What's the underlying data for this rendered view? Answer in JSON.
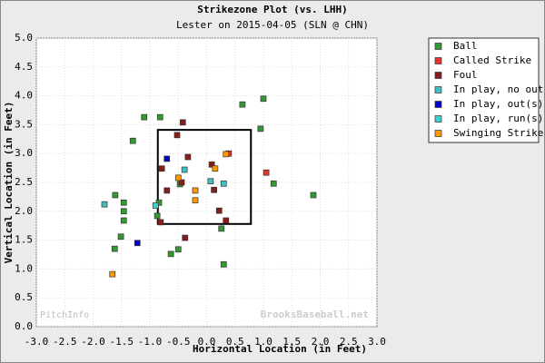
{
  "chart_data": {
    "type": "scatter",
    "title": "Strikezone Plot (vs. LHH)",
    "subtitle": "Lester on 2015-04-05 (SLN @ CHN)",
    "x_label": "Horizontal Location (in Feet)",
    "y_label": "Vertical Location (in Feet)",
    "watermarks": [
      "PitchInfo",
      "BrooksBaseball.net"
    ],
    "xlim": [
      -3,
      3
    ],
    "ylim": [
      0,
      5
    ],
    "xticks": [
      {
        "value": -3,
        "label": "-3.0"
      },
      {
        "value": -2.5,
        "label": "-2.5"
      },
      {
        "value": -2,
        "label": "-2.0"
      },
      {
        "value": -1.5,
        "label": "-1.5"
      },
      {
        "value": -1,
        "label": "-1.0"
      },
      {
        "value": -0.5,
        "label": "-0.5"
      },
      {
        "value": 0,
        "label": "0.0"
      },
      {
        "value": 0.5,
        "label": "0.5"
      },
      {
        "value": 1,
        "label": "1.0"
      },
      {
        "value": 1.5,
        "label": "1.5"
      },
      {
        "value": 2,
        "label": "2.0"
      },
      {
        "value": 2.5,
        "label": "2.5"
      },
      {
        "value": 3,
        "label": "3.0"
      }
    ],
    "yticks": [
      {
        "value": 0,
        "label": "0.0"
      },
      {
        "value": 0.5,
        "label": "0.5"
      },
      {
        "value": 1,
        "label": "1.0"
      },
      {
        "value": 1.5,
        "label": "1.5"
      },
      {
        "value": 2,
        "label": "2.0"
      },
      {
        "value": 2.5,
        "label": "2.5"
      },
      {
        "value": 3,
        "label": "3.0"
      },
      {
        "value": 3.5,
        "label": "3.5"
      },
      {
        "value": 4,
        "label": "4.0"
      },
      {
        "value": 4.5,
        "label": "4.5"
      },
      {
        "value": 5,
        "label": "5.0"
      }
    ],
    "grid": true,
    "legend": "right",
    "strike_zone": {
      "x": [
        -0.86,
        0.78
      ],
      "y": [
        1.78,
        3.41
      ]
    },
    "series": [
      {
        "name": "Ball",
        "color": "#339933",
        "x": [
          -1.1,
          -0.82,
          -1.3,
          0.63,
          1.0,
          0.95,
          -1.61,
          -1.46,
          -1.46,
          -1.46,
          1.18,
          1.88,
          -0.84,
          -0.87,
          -1.51,
          -1.62,
          -0.5,
          -0.63,
          0.26,
          0.3,
          -0.47
        ],
        "y": [
          3.63,
          3.63,
          3.22,
          3.85,
          3.95,
          3.43,
          2.28,
          2.15,
          2.0,
          1.84,
          2.48,
          2.28,
          2.15,
          1.92,
          1.56,
          1.35,
          1.34,
          1.26,
          1.7,
          1.08,
          2.47
        ]
      },
      {
        "name": "Called Strike",
        "color": "#e8322c",
        "x": [
          1.05,
          0.39
        ],
        "y": [
          2.67,
          3.0
        ]
      },
      {
        "name": "Foul",
        "color": "#8b1a1a",
        "x": [
          -0.42,
          -0.52,
          -0.33,
          -0.79,
          -0.7,
          0.09,
          0.13,
          0.22,
          0.34,
          -0.38,
          -0.81,
          -0.44
        ],
        "y": [
          3.54,
          3.32,
          2.94,
          2.74,
          2.36,
          2.81,
          2.37,
          2.01,
          1.84,
          1.54,
          1.81,
          2.5
        ]
      },
      {
        "name": "In play, no out",
        "color": "#40c0c0",
        "x": [
          -1.8,
          -0.39,
          0.07,
          0.3
        ],
        "y": [
          2.12,
          2.72,
          2.52,
          2.48
        ]
      },
      {
        "name": "In play, out(s)",
        "color": "#0000cc",
        "x": [
          -1.22,
          -0.7
        ],
        "y": [
          1.45,
          2.91
        ]
      },
      {
        "name": "In play, run(s)",
        "color": "#40d0d0",
        "x": [
          -0.9
        ],
        "y": [
          2.1
        ]
      },
      {
        "name": "Swinging Strike",
        "color": "#ff9900",
        "x": [
          -1.66,
          0.34,
          -0.2,
          -0.2,
          0.15,
          -0.5
        ],
        "y": [
          0.91,
          2.99,
          2.36,
          2.19,
          2.74,
          2.58
        ]
      }
    ]
  }
}
